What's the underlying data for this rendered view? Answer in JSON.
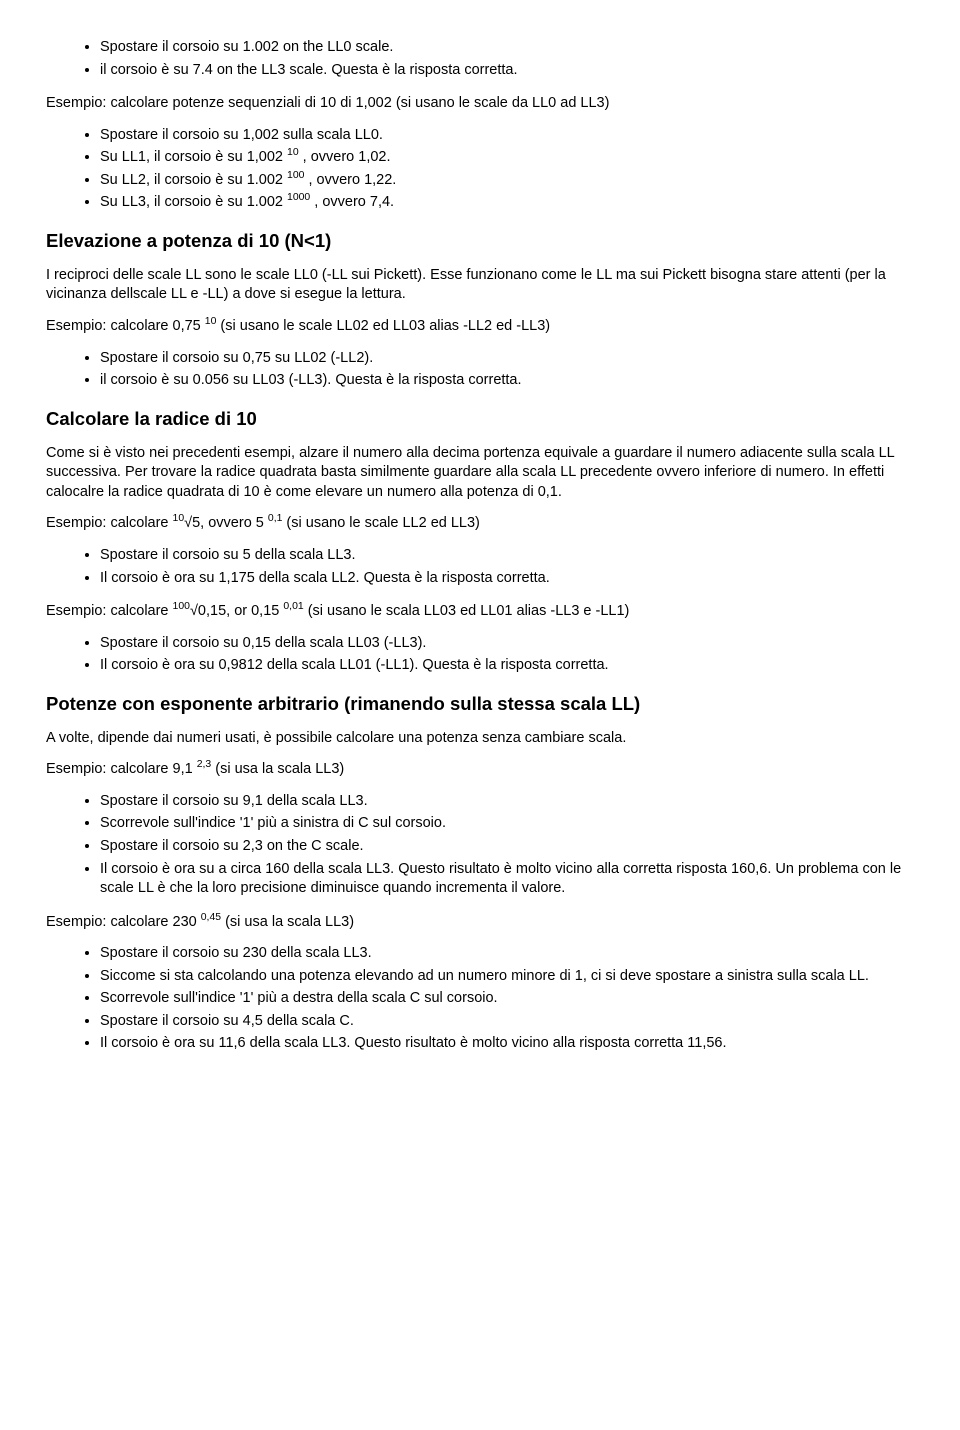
{
  "list1": {
    "i0": "Spostare il corsoio su 1.002 on the LL0 scale.",
    "i1": "il corsoio è su 7.4 on the LL3 scale. Questa è la risposta corretta."
  },
  "p1": "Esempio: calcolare potenze sequenziali di 10 di 1,002 (si usano le scale da LL0 ad LL3)",
  "list2": {
    "i0": "Spostare il corsoio su 1,002 sulla scala LL0.",
    "i1a": "Su LL1, il corsoio è su 1,002 ",
    "i1sup": "10",
    "i1b": " , ovvero 1,02.",
    "i2a": "Su LL2, il corsoio è su 1.002 ",
    "i2sup": "100",
    "i2b": " , ovvero 1,22.",
    "i3a": "Su LL3, il corsoio è su 1.002 ",
    "i3sup": "1000",
    "i3b": " , ovvero 7,4."
  },
  "h1": "Elevazione a potenza di 10 (N<1)",
  "p2": "I reciproci delle scale LL sono le scale LL0 (-LL sui Pickett). Esse funzionano come le LL ma sui Pickett bisogna stare attenti (per la vicinanza dellscale LL e -LL) a dove si esegue la lettura.",
  "p3a": "Esempio: calcolare 0,75 ",
  "p3sup": "10",
  "p3b": " (si usano le scale  LL02 ed LL03 alias -LL2 ed -LL3)",
  "list3": {
    "i0": "Spostare il corsoio su 0,75 su LL02 (-LL2).",
    "i1": "il corsoio è su 0.056 su LL03 (-LL3). Questa è la risposta corretta."
  },
  "h2": "Calcolare la radice di 10",
  "p4": "Come si è visto nei precedenti esempi, alzare il numero alla decima portenza equivale a guardare il numero adiacente sulla scala LL successiva. Per trovare la radice quadrata basta similmente guardare alla scala LL precedente ovvero inferiore di numero. In effetti calocalre la radice quadrata di 10 è come elevare un numero alla potenza di 0,1.",
  "p5a": "Esempio: calcolare ",
  "p5sup1": "10",
  "p5b": "√5, ovvero 5 ",
  "p5sup2": "0,1",
  "p5c": " (si usano le scale  LL2 ed LL3)",
  "list4": {
    "i0": "Spostare il corsoio su 5 della scala LL3.",
    "i1": "Il corsoio è ora su 1,175 della scala LL2. Questa è la risposta corretta."
  },
  "p6a": "Esempio: calcolare ",
  "p6sup1": "100",
  "p6b": "√0,15, or 0,15 ",
  "p6sup2": "0,01",
  "p6c": "   (si usano le scala LL03 ed LL01 alias -LL3 e -LL1)",
  "list5": {
    "i0": "Spostare il corsoio su 0,15 della scala LL03 (-LL3).",
    "i1": "Il corsoio è ora su 0,9812 della scala LL01 (-LL1). Questa è la risposta corretta."
  },
  "h3": "Potenze con esponente arbitrario (rimanendo sulla stessa scala LL)",
  "p7": "A volte, dipende dai numeri usati, è possibile calcolare una potenza senza cambiare scala.",
  "p8a": "Esempio: calcolare 9,1 ",
  "p8sup": "2,3",
  "p8b": " (si usa la scala LL3)",
  "list6": {
    "i0": "Spostare il corsoio su 9,1 della scala LL3.",
    "i1": "Scorrevole sull'indice '1' più a sinistra di C sul corsoio.",
    "i2": "Spostare il corsoio su 2,3 on the C scale.",
    "i3": "Il corsoio è ora su a circa 160 della scala LL3. Questo risultato è molto vicino alla corretta risposta 160,6. Un problema con le scale LL è che la loro precisione diminuisce quando incrementa il valore."
  },
  "p9a": "Esempio: calcolare 230 ",
  "p9sup": "0,45",
  "p9b": " (si usa la scala LL3)",
  "list7": {
    "i0": "Spostare il corsoio su 230 della scala LL3.",
    "i1": "Siccome si sta calcolando una potenza elevando ad un numero minore di 1, ci si deve spostare a sinistra sulla scala LL.",
    "i2": "Scorrevole sull'indice '1' più a destra della scala C sul corsoio.",
    "i3": "Spostare il corsoio su 4,5 della scala C.",
    "i4": "Il corsoio è ora su 11,6 della scala LL3. Questo risultato è molto vicino alla risposta corretta 11,56."
  }
}
